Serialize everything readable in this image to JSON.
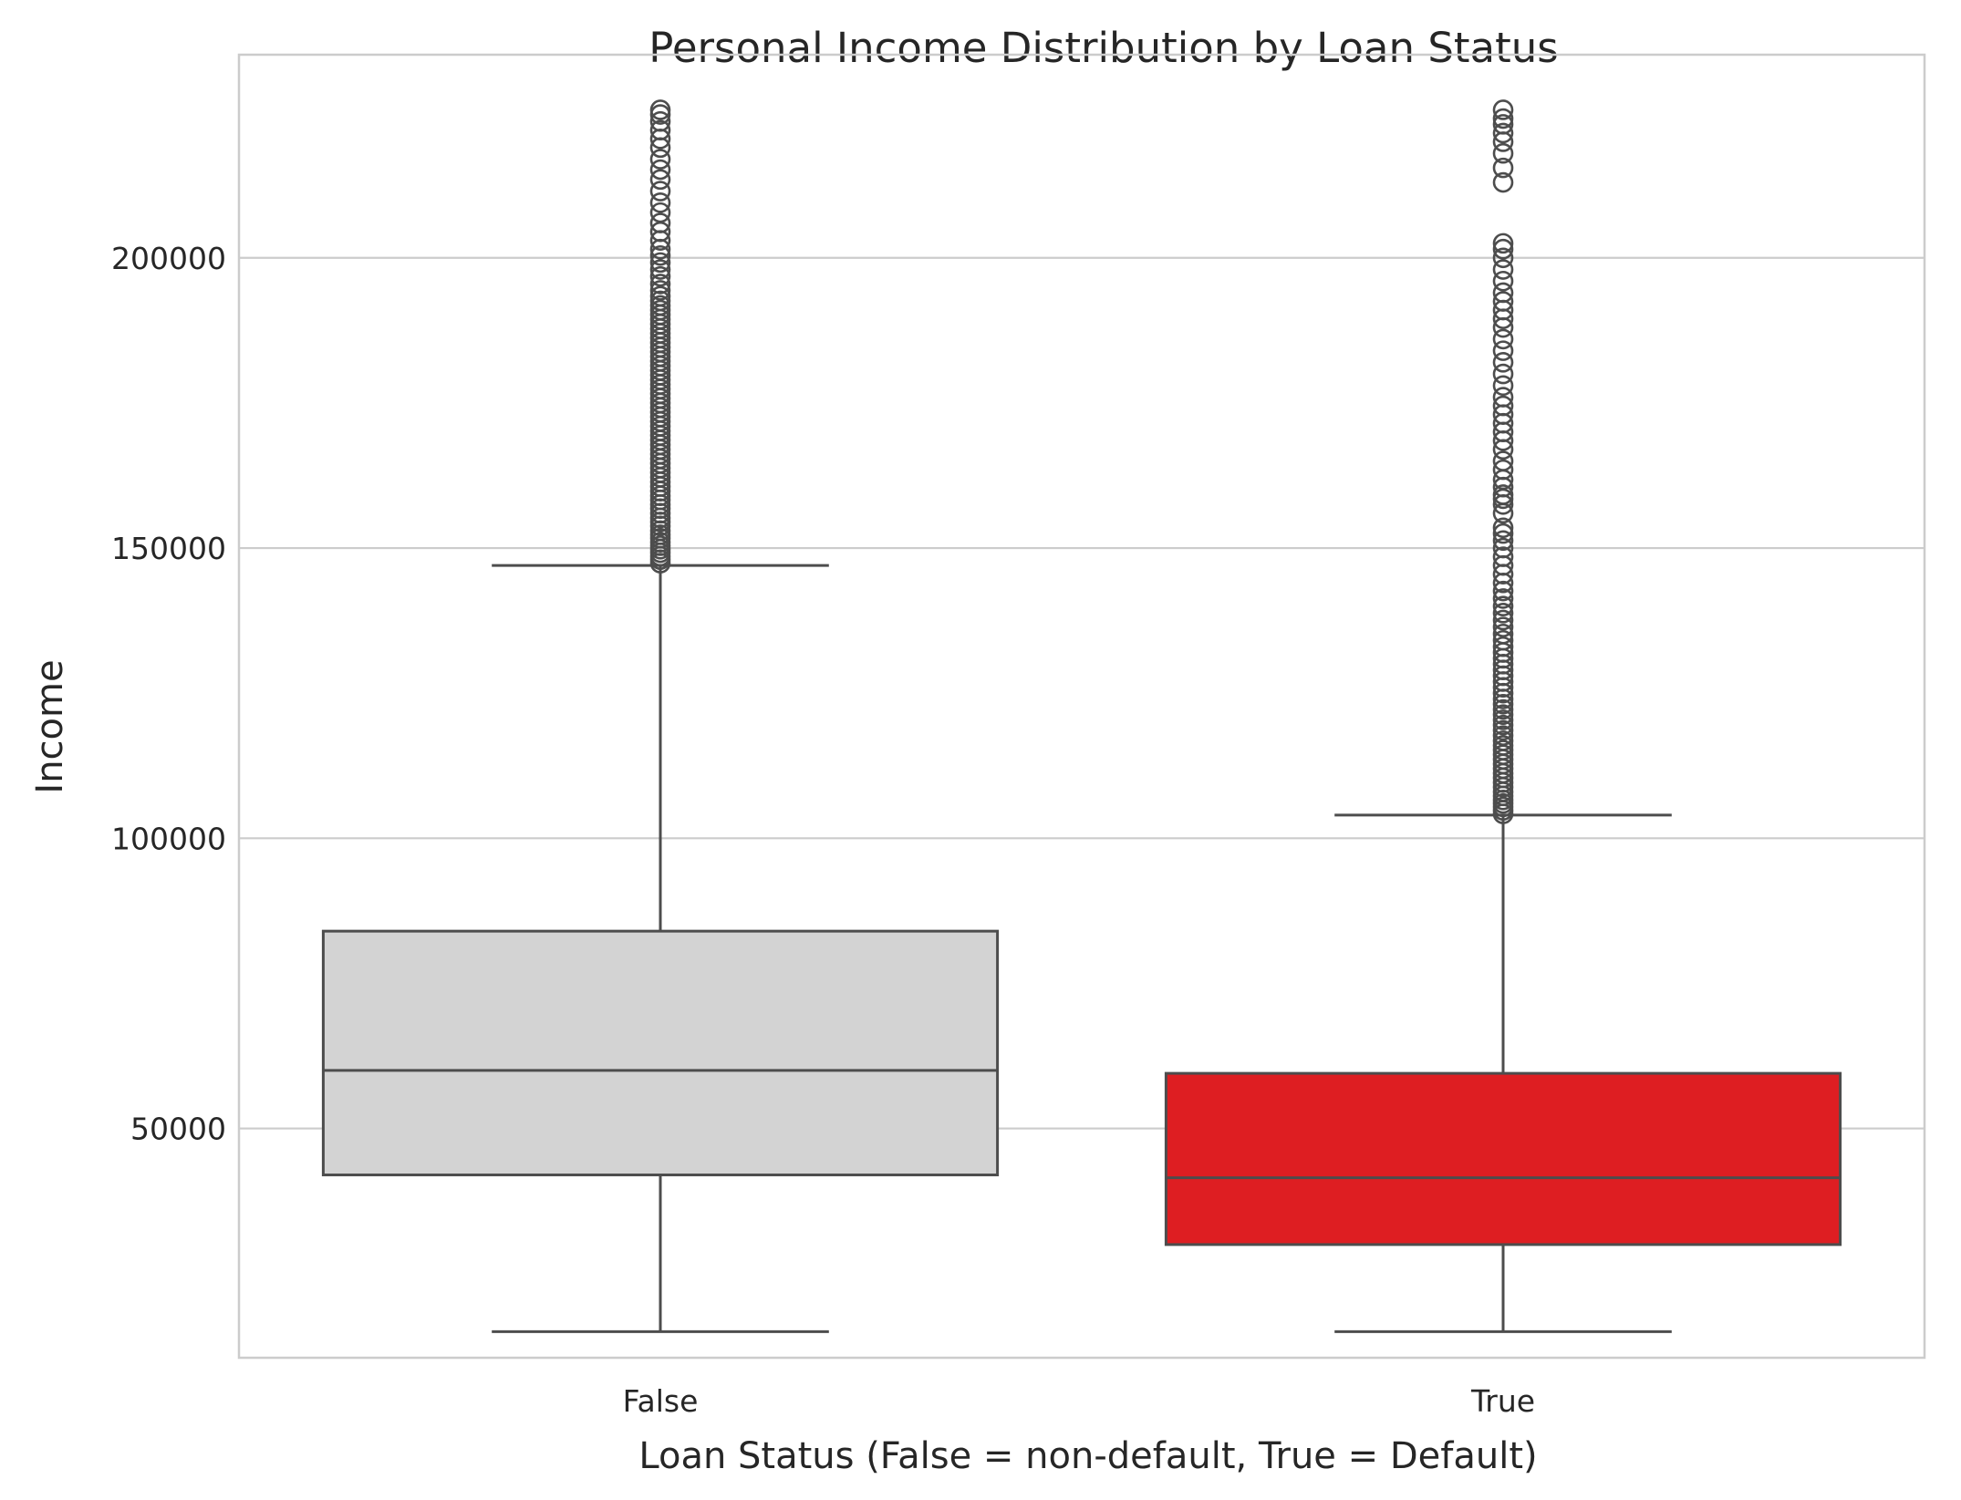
{
  "chart_data": {
    "type": "box",
    "title": "Personal Income Distribution by Loan Status",
    "xlabel": "Loan Status (False = non-default, True = Default)",
    "ylabel": "Income",
    "categories": [
      "False",
      "True"
    ],
    "ylim": [
      10500,
      235000
    ],
    "yticks": [
      50000,
      100000,
      150000,
      200000
    ],
    "ytick_labels": [
      "50000",
      "100000",
      "150000",
      "200000"
    ],
    "grid": "horizontal",
    "colors": {
      "False": "#d3d3d3",
      "True": "#de1e22",
      "lines": "#4d4d4d",
      "grid": "#cccccc",
      "frame": "#cccccc"
    },
    "boxes": [
      {
        "category": "False",
        "whisker_low": 15000,
        "q1": 42000,
        "median": 60000,
        "q3": 84000,
        "whisker_high": 147000,
        "outliers": [
          147400,
          148000,
          148600,
          149200,
          149800,
          150400,
          151000,
          151700,
          152300,
          153000,
          153800,
          154500,
          155200,
          156000,
          156800,
          157500,
          158300,
          159000,
          159800,
          160600,
          161400,
          162200,
          163000,
          163800,
          164600,
          165400,
          166200,
          167000,
          167800,
          168600,
          169400,
          170200,
          171000,
          171800,
          172600,
          173400,
          174200,
          175000,
          175800,
          176600,
          177400,
          178200,
          179000,
          179800,
          180600,
          181400,
          182200,
          183000,
          183800,
          184600,
          185400,
          186200,
          187000,
          187800,
          188600,
          189400,
          190200,
          191000,
          191800,
          192600,
          193400,
          194400,
          195500,
          196800,
          198000,
          199200,
          200400,
          201500,
          203000,
          204500,
          206000,
          207800,
          209500,
          211500,
          213500,
          215200,
          217000,
          219000,
          220500,
          222000,
          223500,
          224700,
          225500
        ]
      },
      {
        "category": "True",
        "whisker_low": 15000,
        "q1": 30000,
        "median": 41500,
        "q3": 59500,
        "whisker_high": 104000,
        "outliers": [
          104200,
          104800,
          105400,
          106000,
          106600,
          107300,
          108000,
          108800,
          109600,
          110400,
          111200,
          112000,
          112800,
          113600,
          114400,
          115200,
          116000,
          116800,
          117700,
          118600,
          119500,
          120400,
          121300,
          122200,
          123100,
          124000,
          125000,
          126000,
          127000,
          128000,
          129000,
          130000,
          131000,
          132000,
          133000,
          134100,
          135200,
          136400,
          137600,
          138800,
          140000,
          141300,
          142600,
          144000,
          145500,
          147000,
          148500,
          150000,
          151300,
          152500,
          153500,
          156000,
          157500,
          158500,
          159200,
          160500,
          161800,
          163500,
          165000,
          167000,
          168500,
          170000,
          171500,
          173000,
          174500,
          176000,
          178000,
          180000,
          182000,
          184000,
          186000,
          188000,
          189500,
          191000,
          192500,
          194000,
          196000,
          198000,
          200000,
          201500,
          202500,
          213000,
          215500,
          218000,
          220000,
          221500,
          223000,
          224000,
          225500
        ]
      }
    ]
  }
}
